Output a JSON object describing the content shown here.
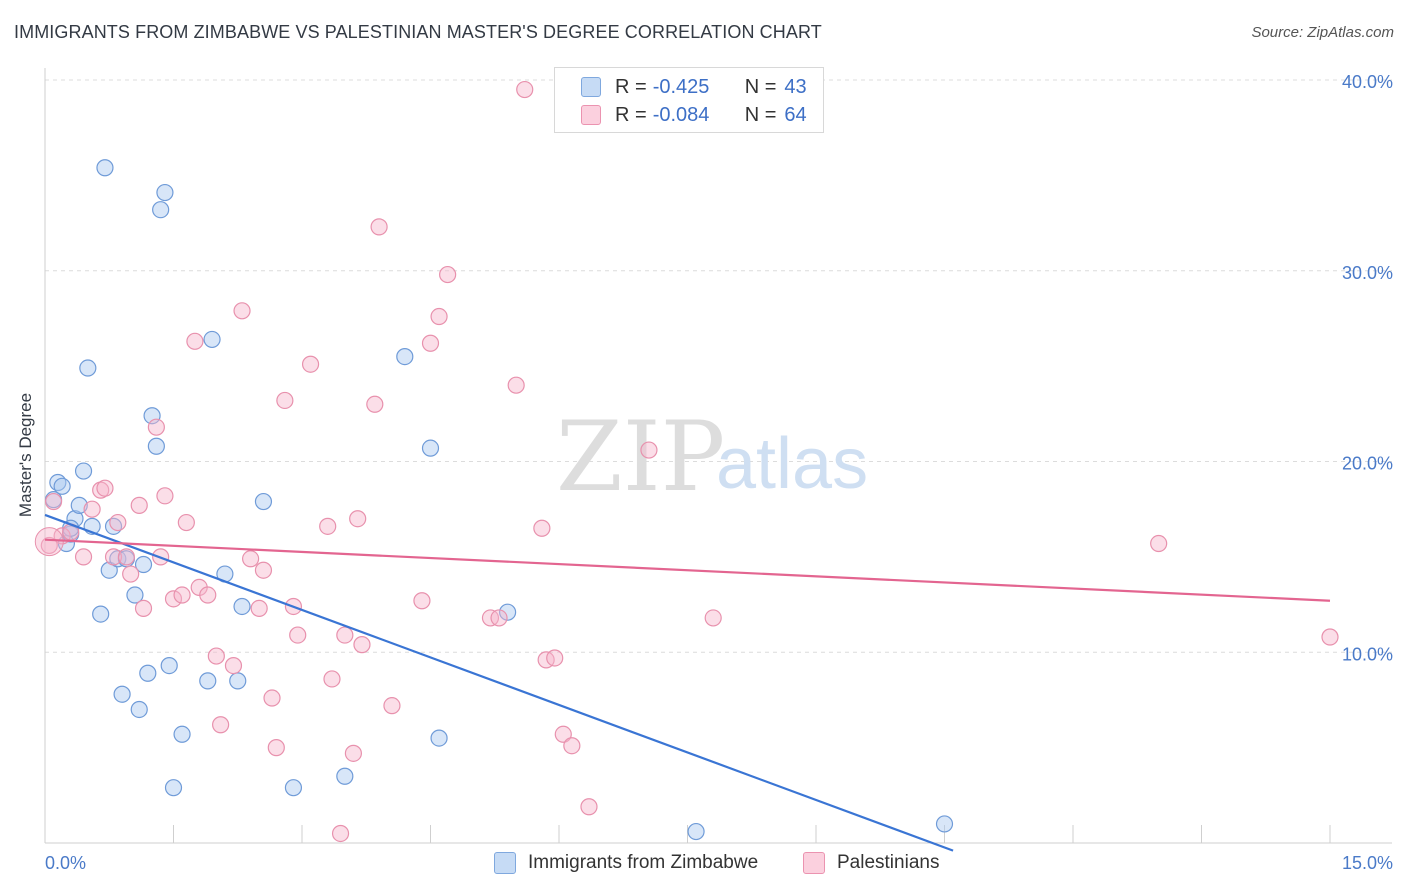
{
  "title": "IMMIGRANTS FROM ZIMBABWE VS PALESTINIAN MASTER'S DEGREE CORRELATION CHART",
  "source": "Source: ZipAtlas.com",
  "watermark": {
    "zip": "ZIP",
    "atlas": "atlas"
  },
  "legend": {
    "rows": [
      {
        "r_label": "R =",
        "r_value": "-0.425",
        "n_label": "N =",
        "n_value": "43",
        "color": "#a9c8f0"
      },
      {
        "r_label": "R =",
        "r_value": "-0.084",
        "n_label": "N =",
        "n_value": "64",
        "color": "#f7b6cb"
      }
    ]
  },
  "bottom_legend": [
    {
      "label": "Immigrants from Zimbabwe",
      "color": "#a9c8f0"
    },
    {
      "label": "Palestinians",
      "color": "#f7b6cb"
    }
  ],
  "chart_data": {
    "type": "scatter",
    "ylabel": "Master's Degree",
    "xlim": [
      0,
      15
    ],
    "ylim": [
      0,
      40
    ],
    "x_tick_labels": [
      "0.0%",
      "15.0%"
    ],
    "y_ticks": [
      10,
      20,
      30,
      40
    ],
    "y_tick_labels": [
      "10.0%",
      "20.0%",
      "30.0%",
      "40.0%"
    ],
    "grid": true,
    "series": [
      {
        "name": "Immigrants from Zimbabwe",
        "color": "#3a75d4",
        "fill": "#a9c8f0",
        "trend": {
          "x": [
            0,
            10.6
          ],
          "y": [
            17.2,
            -0.4
          ]
        },
        "points": [
          [
            0.1,
            18.0
          ],
          [
            0.15,
            18.9
          ],
          [
            0.2,
            18.7
          ],
          [
            0.25,
            15.7
          ],
          [
            0.3,
            16.2
          ],
          [
            0.35,
            17.0
          ],
          [
            0.4,
            17.7
          ],
          [
            0.45,
            19.5
          ],
          [
            0.5,
            24.9
          ],
          [
            0.55,
            16.6
          ],
          [
            0.65,
            12.0
          ],
          [
            0.7,
            35.4
          ],
          [
            0.75,
            14.3
          ],
          [
            0.8,
            16.6
          ],
          [
            0.85,
            14.9
          ],
          [
            0.9,
            7.8
          ],
          [
            0.95,
            14.9
          ],
          [
            1.05,
            13.0
          ],
          [
            1.1,
            7.0
          ],
          [
            1.15,
            14.6
          ],
          [
            1.2,
            8.9
          ],
          [
            1.25,
            22.4
          ],
          [
            1.3,
            20.8
          ],
          [
            1.35,
            33.2
          ],
          [
            1.4,
            34.1
          ],
          [
            1.45,
            9.3
          ],
          [
            1.5,
            2.9
          ],
          [
            1.6,
            5.7
          ],
          [
            1.9,
            8.5
          ],
          [
            1.95,
            26.4
          ],
          [
            2.1,
            14.1
          ],
          [
            2.25,
            8.5
          ],
          [
            2.3,
            12.4
          ],
          [
            2.55,
            17.9
          ],
          [
            2.9,
            2.9
          ],
          [
            3.5,
            3.5
          ],
          [
            4.2,
            25.5
          ],
          [
            4.5,
            20.7
          ],
          [
            4.6,
            5.5
          ],
          [
            5.4,
            12.1
          ],
          [
            7.6,
            0.6
          ],
          [
            10.5,
            1.0
          ],
          [
            0.3,
            16.5
          ]
        ]
      },
      {
        "name": "Palestinians",
        "color": "#e36590",
        "fill": "#f7b6cb",
        "trend": {
          "x": [
            0,
            15
          ],
          "y": [
            15.9,
            12.7
          ]
        },
        "points": [
          [
            0.05,
            15.6
          ],
          [
            0.1,
            17.9
          ],
          [
            0.2,
            16.1
          ],
          [
            0.3,
            16.3
          ],
          [
            0.45,
            15.0
          ],
          [
            0.55,
            17.5
          ],
          [
            0.65,
            18.5
          ],
          [
            0.7,
            18.6
          ],
          [
            0.8,
            15.0
          ],
          [
            0.85,
            16.8
          ],
          [
            0.95,
            15.0
          ],
          [
            1.0,
            14.1
          ],
          [
            1.1,
            17.7
          ],
          [
            1.15,
            12.3
          ],
          [
            1.3,
            21.8
          ],
          [
            1.35,
            15.0
          ],
          [
            1.4,
            18.2
          ],
          [
            1.5,
            12.8
          ],
          [
            1.6,
            13.0
          ],
          [
            1.65,
            16.8
          ],
          [
            1.75,
            26.3
          ],
          [
            1.8,
            13.4
          ],
          [
            1.9,
            13.0
          ],
          [
            2.0,
            9.8
          ],
          [
            2.05,
            6.2
          ],
          [
            2.2,
            9.3
          ],
          [
            2.3,
            27.9
          ],
          [
            2.4,
            14.9
          ],
          [
            2.5,
            12.3
          ],
          [
            2.55,
            14.3
          ],
          [
            2.65,
            7.6
          ],
          [
            2.7,
            5.0
          ],
          [
            2.8,
            23.2
          ],
          [
            2.9,
            12.4
          ],
          [
            2.95,
            10.9
          ],
          [
            3.1,
            25.1
          ],
          [
            3.3,
            16.6
          ],
          [
            3.35,
            8.6
          ],
          [
            3.45,
            0.5
          ],
          [
            3.5,
            10.9
          ],
          [
            3.6,
            4.7
          ],
          [
            3.65,
            17.0
          ],
          [
            3.7,
            10.4
          ],
          [
            3.85,
            23.0
          ],
          [
            3.9,
            32.3
          ],
          [
            4.05,
            7.2
          ],
          [
            4.4,
            12.7
          ],
          [
            4.5,
            26.2
          ],
          [
            4.6,
            27.6
          ],
          [
            4.7,
            29.8
          ],
          [
            5.2,
            11.8
          ],
          [
            5.3,
            11.8
          ],
          [
            5.5,
            24.0
          ],
          [
            5.6,
            39.5
          ],
          [
            5.8,
            16.5
          ],
          [
            5.85,
            9.6
          ],
          [
            5.95,
            9.7
          ],
          [
            6.05,
            5.7
          ],
          [
            6.15,
            5.1
          ],
          [
            6.35,
            1.9
          ],
          [
            7.05,
            20.6
          ],
          [
            7.8,
            11.8
          ],
          [
            13.0,
            15.7
          ],
          [
            15.0,
            10.8
          ]
        ]
      }
    ]
  }
}
